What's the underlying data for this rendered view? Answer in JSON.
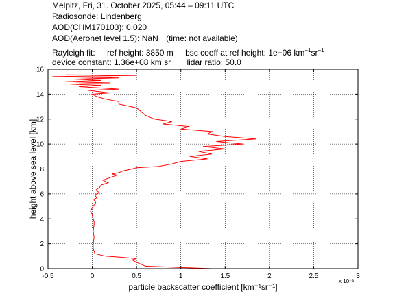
{
  "header": {
    "line1": "Melpitz, Fri, 31. October 2025, 05:44 – 09:11 UTC",
    "line2": "Radiosonde: Lindenberg",
    "line3": "AOD(CHM170103): 0.020",
    "line4_a": "AOD(Aeronet level 1.5): NaN",
    "line4_b": "(time: not available)",
    "line5_a": "Rayleigh fit:",
    "line5_b": "ref height: 3850 m",
    "line5_c": "bsc coeff at ref height: 1e−06 km",
    "line5_c2": "sr",
    "line6_a": "device constant: 1.36e+08 km sr",
    "line6_b": "lidar ratio: 50.0",
    "exp_minus1": "−1"
  },
  "colors": {
    "profile": "#ff0000",
    "axes": "#000000",
    "grid": "#000000"
  },
  "chart_data": {
    "type": "line",
    "xlabel": "particle backscatter coefficient [km⁻¹sr⁻¹]",
    "ylabel": "height above sea level [km]",
    "x_multiplier": "x 10⁻³",
    "xlim": [
      -0.5,
      3
    ],
    "ylim": [
      0,
      16
    ],
    "xticks": [
      -0.5,
      0,
      0.5,
      1,
      1.5,
      2,
      2.5,
      3
    ],
    "yticks": [
      0,
      2,
      4,
      6,
      8,
      10,
      12,
      14,
      16
    ],
    "grid": true,
    "series": [
      {
        "x": [
          1.35,
          0.6,
          0.55,
          0.5,
          0.45,
          0.5,
          0.35,
          0.15,
          0.03,
          0.01,
          0.01,
          0.02,
          0.01,
          0.02,
          0.02,
          0.01,
          0.0,
          -0.02,
          0.0,
          0.02,
          0.04,
          0.02,
          0.05,
          0.03,
          0.05,
          0.08,
          0.04,
          0.08,
          0.1,
          0.18,
          0.12,
          0.2,
          0.28,
          0.22,
          0.3,
          0.35,
          0.45,
          0.5,
          0.75,
          0.9,
          1.0,
          1.3,
          1.1,
          1.35,
          1.2,
          1.5,
          1.25,
          1.7,
          1.4,
          1.85,
          1.5,
          1.3,
          1.35,
          1.0,
          1.1,
          0.8,
          0.9,
          0.7,
          0.6,
          0.55,
          0.5,
          0.3,
          0.3,
          0.15,
          0.05,
          0.0,
          0.2,
          -0.05,
          0.3,
          -0.15,
          0.1,
          -0.25,
          0.2,
          -0.3,
          0.1,
          -0.2,
          0.3,
          -0.45,
          0.5,
          -0.3
        ],
        "y": [
          0.0,
          0.2,
          0.35,
          0.5,
          0.7,
          0.8,
          0.9,
          1.0,
          1.2,
          1.6,
          2.0,
          2.5,
          3.0,
          3.5,
          3.8,
          4.0,
          4.3,
          4.6,
          4.9,
          5.1,
          5.3,
          5.5,
          5.7,
          5.9,
          6.0,
          6.1,
          6.3,
          6.5,
          6.7,
          6.9,
          7.1,
          7.3,
          7.5,
          7.6,
          7.7,
          7.85,
          8.0,
          8.1,
          8.2,
          8.4,
          8.6,
          8.8,
          9.0,
          9.2,
          9.4,
          9.6,
          9.8,
          10.0,
          10.2,
          10.4,
          10.6,
          10.8,
          11.0,
          11.2,
          11.4,
          11.6,
          11.8,
          12.0,
          12.3,
          12.6,
          12.9,
          13.2,
          13.4,
          13.6,
          13.8,
          14.0,
          14.1,
          14.3,
          14.4,
          14.6,
          14.7,
          14.8,
          14.9,
          15.0,
          15.1,
          15.2,
          15.3,
          15.4,
          15.5,
          15.55
        ]
      }
    ]
  }
}
